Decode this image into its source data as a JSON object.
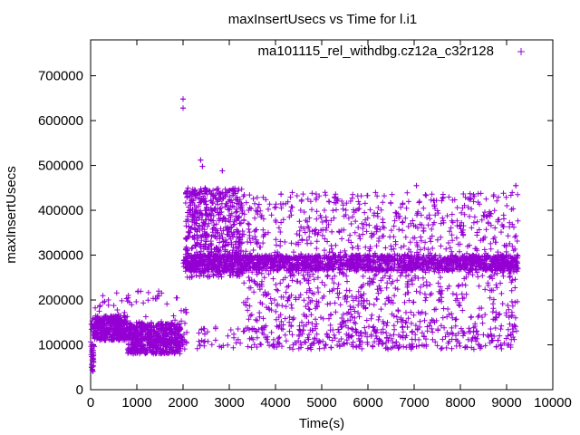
{
  "chart_data": {
    "type": "scatter",
    "title": "maxInsertUsecs vs Time for l.i1",
    "xlabel": "Time(s)",
    "ylabel": "maxInsertUsecs",
    "xlim": [
      0,
      10000
    ],
    "ylim": [
      0,
      780000
    ],
    "x_ticks": [
      0,
      1000,
      2000,
      3000,
      4000,
      5000,
      6000,
      7000,
      8000,
      9000,
      10000
    ],
    "x_tick_labels": [
      "0",
      "1000",
      "2000",
      "3000",
      "4000",
      "5000",
      "6000",
      "7000",
      "8000",
      "9000",
      "10000"
    ],
    "y_ticks": [
      0,
      100000,
      200000,
      300000,
      400000,
      500000,
      600000,
      700000
    ],
    "y_tick_labels": [
      "0",
      "100000",
      "200000",
      "300000",
      "400000",
      "500000",
      "600000",
      "700000"
    ],
    "grid": false,
    "legend_position": "top-right",
    "marker": "+",
    "color": "#9400d3",
    "series": [
      {
        "name": "ma101115_rel_withdbg.cz12a_c32r128",
        "segments": [
          {
            "x_range": [
              0,
              80
            ],
            "y_band": [
              40000,
              160000
            ],
            "count": 40
          },
          {
            "x_range": [
              80,
              800
            ],
            "y_band": [
              110000,
              165000
            ],
            "count": 360
          },
          {
            "x_range": [
              800,
              1950
            ],
            "y_band": [
              80000,
              150000
            ],
            "count": 620
          },
          {
            "x_range": [
              100,
              1900
            ],
            "y_band": [
              150000,
              220000
            ],
            "count": 45
          },
          {
            "x_range": [
              1950,
              2100
            ],
            "y_band": [
              90000,
              180000
            ],
            "count": 20
          },
          {
            "x_range": [
              2000,
              9250
            ],
            "y_band": [
              265000,
              300000
            ],
            "count": 1500
          },
          {
            "x_range": [
              2050,
              3300
            ],
            "y_band": [
              250000,
              450000
            ],
            "count": 650
          },
          {
            "x_range": [
              3300,
              9250
            ],
            "y_band": [
              90000,
              440000
            ],
            "count": 1300
          },
          {
            "x_range": [
              2300,
              9250
            ],
            "y_band": [
              90000,
              140000
            ],
            "count": 200
          }
        ],
        "outliers": [
          {
            "x": 2000,
            "y": 648000
          },
          {
            "x": 2000,
            "y": 628000
          },
          {
            "x": 2380,
            "y": 512000
          },
          {
            "x": 2420,
            "y": 498000
          },
          {
            "x": 2850,
            "y": 488000
          },
          {
            "x": 7050,
            "y": 455000
          },
          {
            "x": 9200,
            "y": 455000
          },
          {
            "x": 4120,
            "y": 436000
          },
          {
            "x": 20,
            "y": 50000
          },
          {
            "x": 40,
            "y": 45000
          }
        ]
      }
    ]
  }
}
